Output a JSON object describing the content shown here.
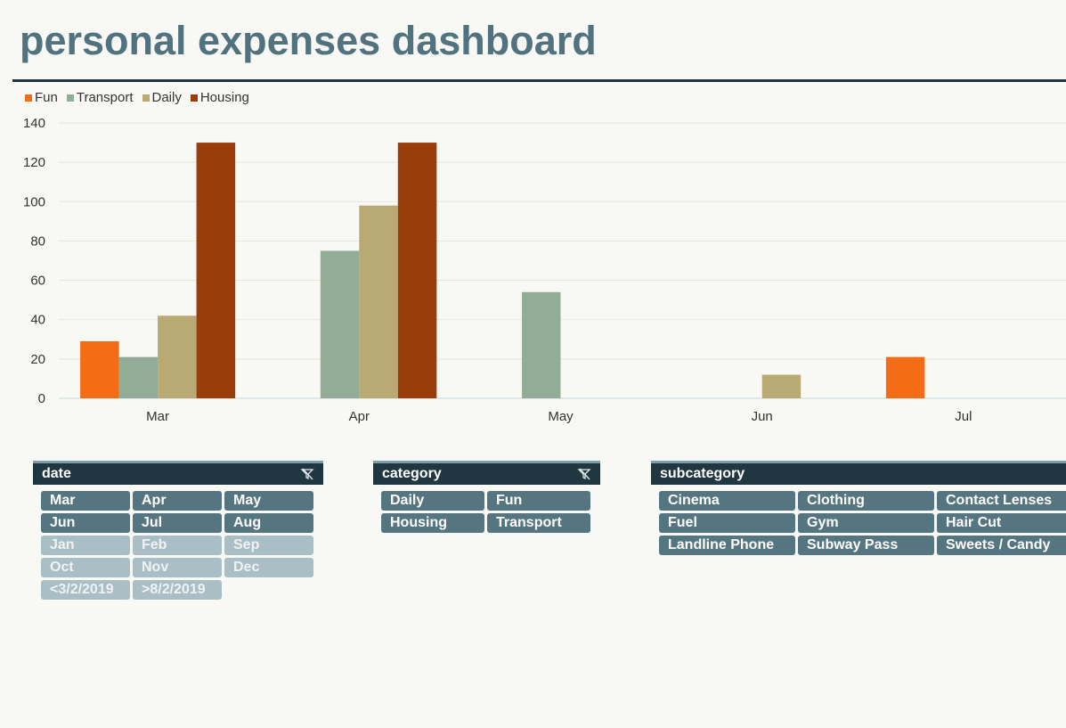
{
  "page": {
    "title": "personal expenses dashboard"
  },
  "colors": {
    "Fun": "#f56c16",
    "Transport": "#92ac97",
    "Daily": "#b9aa74",
    "Housing": "#993d0a",
    "slicer_selected": "#557681",
    "slicer_unselected": "#aabfc5",
    "title": "#50737f"
  },
  "chart_data": {
    "type": "bar",
    "categories": [
      "Mar",
      "Apr",
      "May",
      "Jun",
      "Jul"
    ],
    "series": [
      {
        "name": "Fun",
        "values": [
          29,
          null,
          null,
          null,
          21
        ]
      },
      {
        "name": "Transport",
        "values": [
          21,
          75,
          54,
          null,
          null
        ]
      },
      {
        "name": "Daily",
        "values": [
          42,
          98,
          null,
          12,
          null
        ]
      },
      {
        "name": "Housing",
        "values": [
          130,
          130,
          null,
          null,
          null
        ]
      }
    ],
    "yticks": [
      "0",
      "20",
      "40",
      "60",
      "80",
      "100",
      "120",
      "140"
    ],
    "ylim": [
      0,
      140
    ],
    "grid": true,
    "legend": "top-left"
  },
  "slicers": {
    "date": {
      "title": "date",
      "items": [
        {
          "label": "Mar",
          "selected": true
        },
        {
          "label": "Apr",
          "selected": true
        },
        {
          "label": "May",
          "selected": true
        },
        {
          "label": "Jun",
          "selected": true
        },
        {
          "label": "Jul",
          "selected": true
        },
        {
          "label": "Aug",
          "selected": true
        },
        {
          "label": "Jan",
          "selected": false
        },
        {
          "label": "Feb",
          "selected": false
        },
        {
          "label": "Sep",
          "selected": false
        },
        {
          "label": "Oct",
          "selected": false
        },
        {
          "label": "Nov",
          "selected": false
        },
        {
          "label": "Dec",
          "selected": false
        },
        {
          "label": "<3/2/2019",
          "selected": false
        },
        {
          "label": ">8/2/2019",
          "selected": false
        }
      ]
    },
    "category": {
      "title": "category",
      "items": [
        {
          "label": "Daily",
          "selected": true
        },
        {
          "label": "Fun",
          "selected": true
        },
        {
          "label": "Housing",
          "selected": true
        },
        {
          "label": "Transport",
          "selected": true
        }
      ]
    },
    "subcategory": {
      "title": "subcategory",
      "items": [
        {
          "label": "Cinema",
          "selected": true
        },
        {
          "label": "Clothing",
          "selected": true
        },
        {
          "label": "Contact Lenses",
          "selected": true
        },
        {
          "label": "Fuel",
          "selected": true
        },
        {
          "label": "Gym",
          "selected": true
        },
        {
          "label": "Hair Cut",
          "selected": true
        },
        {
          "label": "Landline Phone",
          "selected": true
        },
        {
          "label": "Subway Pass",
          "selected": true
        },
        {
          "label": "Sweets / Candy",
          "selected": true
        }
      ]
    }
  }
}
